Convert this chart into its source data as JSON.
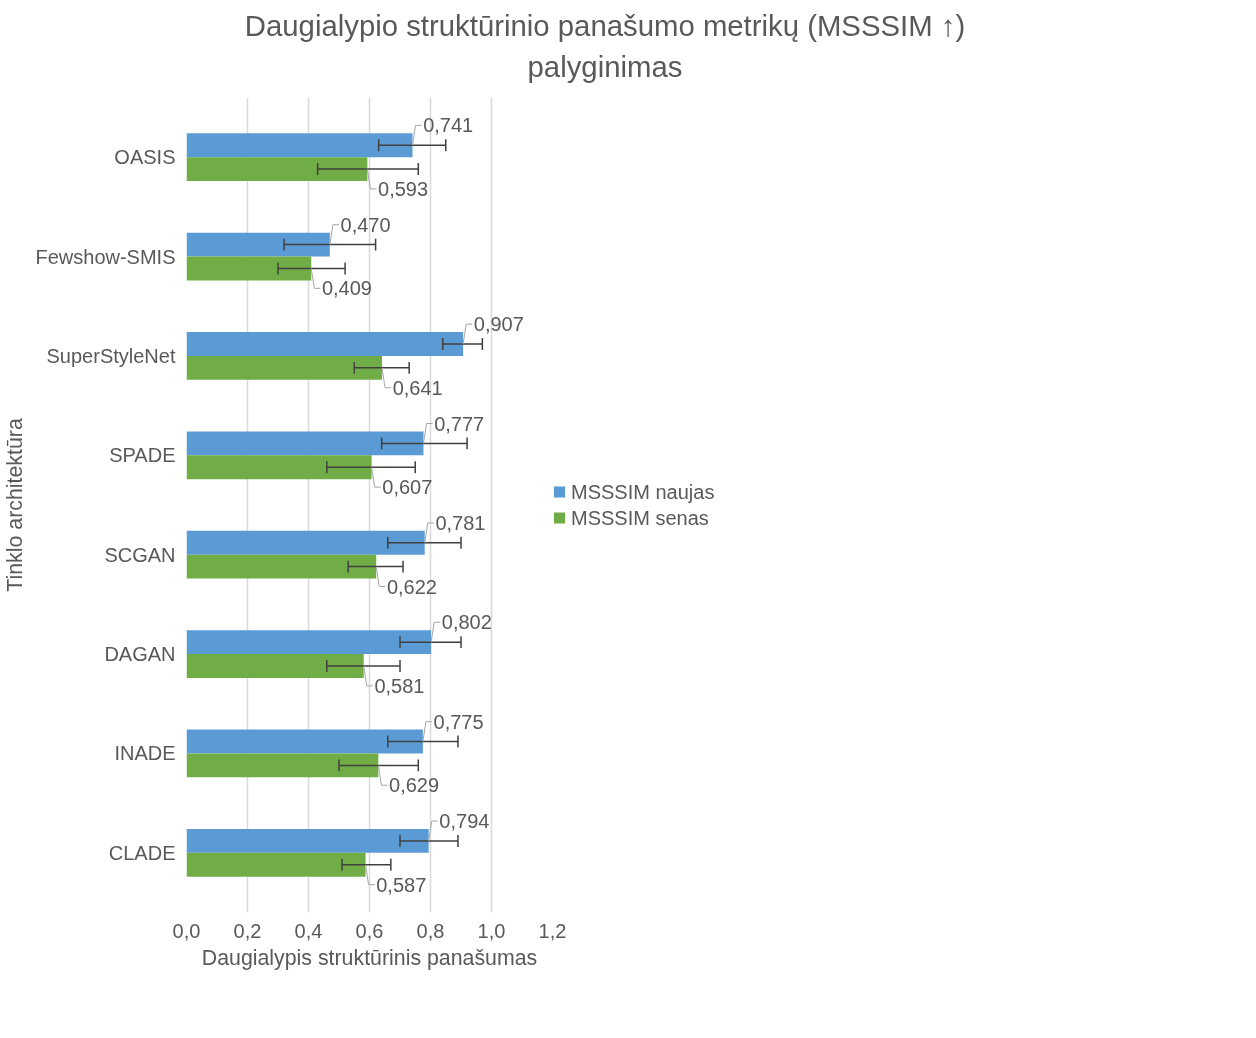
{
  "chart_data": {
    "type": "bar",
    "orientation": "horizontal",
    "title": "Daugialypio struktūrinio panašumo metrikų (MSSSIM ↑)\npalyginimas",
    "xlabel": "Daugialypis struktūrinis panašumas",
    "ylabel": "Tinklo architektūra",
    "categories": [
      "OASIS",
      "Fewshow-SMIS",
      "SuperStyleNet",
      "SPADE",
      "SCGAN",
      "DAGAN",
      "INADE",
      "CLADE"
    ],
    "series": [
      {
        "name": "MSSSIM naujas",
        "color": "#5b9bd5",
        "values": [
          0.741,
          0.47,
          0.907,
          0.777,
          0.781,
          0.802,
          0.775,
          0.794
        ],
        "value_labels": [
          "0,741",
          "0,470",
          "0,907",
          "0,777",
          "0,781",
          "0,802",
          "0,775",
          "0,794"
        ],
        "errors": [
          [
            0.63,
            0.85
          ],
          [
            0.32,
            0.62
          ],
          [
            0.84,
            0.97
          ],
          [
            0.64,
            0.92
          ],
          [
            0.66,
            0.9
          ],
          [
            0.7,
            0.9
          ],
          [
            0.66,
            0.89
          ],
          [
            0.7,
            0.89
          ]
        ]
      },
      {
        "name": "MSSSIM senas",
        "color": "#70ad47",
        "values": [
          0.593,
          0.409,
          0.641,
          0.607,
          0.622,
          0.581,
          0.629,
          0.587
        ],
        "value_labels": [
          "0,593",
          "0,409",
          "0,641",
          "0,607",
          "0,622",
          "0,581",
          "0,629",
          "0,587"
        ],
        "errors": [
          [
            0.43,
            0.76
          ],
          [
            0.3,
            0.52
          ],
          [
            0.55,
            0.73
          ],
          [
            0.46,
            0.75
          ],
          [
            0.53,
            0.71
          ],
          [
            0.46,
            0.7
          ],
          [
            0.5,
            0.76
          ],
          [
            0.51,
            0.67
          ]
        ]
      }
    ],
    "xlim": [
      0,
      1.2
    ],
    "xticks": [
      {
        "value": 0,
        "label": "0,0"
      },
      {
        "value": 0.2,
        "label": "0,2"
      },
      {
        "value": 0.4,
        "label": "0,4"
      },
      {
        "value": 0.6,
        "label": "0,6"
      },
      {
        "value": 0.8,
        "label": "0,8"
      },
      {
        "value": 1.0,
        "label": "1,0"
      },
      {
        "value": 1.2,
        "label": "1,2"
      }
    ],
    "grid": "x",
    "legend": "right"
  }
}
